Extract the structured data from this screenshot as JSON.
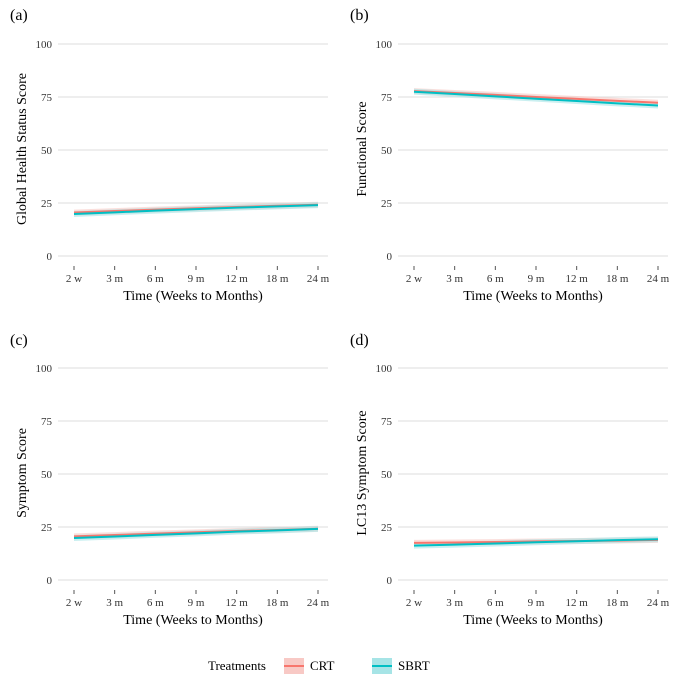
{
  "legend": {
    "title": "Treatments",
    "entries": [
      {
        "name": "CRT",
        "color": "#F8766D",
        "band": "#F8C9C5"
      },
      {
        "name": "SBRT",
        "color": "#00BFC4",
        "band": "#A6E4E6"
      }
    ]
  },
  "chart_data": [
    {
      "type": "line",
      "label": "(a)",
      "xlabel": "Time (Weeks to Months)",
      "ylabel": "Global Health Status Score",
      "categories": [
        "2 w",
        "3 m",
        "6 m",
        "9 m",
        "12 m",
        "18 m",
        "24 m"
      ],
      "ylim": [
        0,
        100
      ],
      "yticks": [
        "0",
        "25",
        "50",
        "75",
        "100"
      ],
      "grid": true,
      "series": [
        {
          "name": "CRT",
          "values": [
            20.5,
            21.2,
            21.9,
            22.5,
            23.1,
            23.7,
            24.2
          ]
        },
        {
          "name": "SBRT",
          "values": [
            19.8,
            20.6,
            21.4,
            22.1,
            22.8,
            23.4,
            24.0
          ]
        }
      ]
    },
    {
      "type": "line",
      "label": "(b)",
      "xlabel": "Time (Weeks to Months)",
      "ylabel": "Functional Score",
      "categories": [
        "2 w",
        "3 m",
        "6 m",
        "9 m",
        "12 m",
        "18 m",
        "24 m"
      ],
      "ylim": [
        0,
        100
      ],
      "yticks": [
        "0",
        "25",
        "50",
        "75",
        "100"
      ],
      "grid": true,
      "series": [
        {
          "name": "CRT",
          "values": [
            77.8,
            76.9,
            76.0,
            75.0,
            74.1,
            73.2,
            72.3
          ]
        },
        {
          "name": "SBRT",
          "values": [
            77.5,
            76.4,
            75.3,
            74.2,
            73.1,
            72.0,
            71.0
          ]
        }
      ]
    },
    {
      "type": "line",
      "label": "(c)",
      "xlabel": "Time (Weeks to Months)",
      "ylabel": "Symptom Score",
      "categories": [
        "2 w",
        "3 m",
        "6 m",
        "9 m",
        "12 m",
        "18 m",
        "24 m"
      ],
      "ylim": [
        0,
        100
      ],
      "yticks": [
        "0",
        "25",
        "50",
        "75",
        "100"
      ],
      "grid": true,
      "series": [
        {
          "name": "CRT",
          "values": [
            20.6,
            21.2,
            21.9,
            22.5,
            23.1,
            23.6,
            24.2
          ]
        },
        {
          "name": "SBRT",
          "values": [
            19.8,
            20.5,
            21.3,
            22.0,
            22.8,
            23.4,
            24.1
          ]
        }
      ]
    },
    {
      "type": "line",
      "label": "(d)",
      "xlabel": "Time (Weeks to Months)",
      "ylabel": "LC13 Symptom Score",
      "categories": [
        "2 w",
        "3 m",
        "6 m",
        "9 m",
        "12 m",
        "18 m",
        "24 m"
      ],
      "ylim": [
        0,
        100
      ],
      "yticks": [
        "0",
        "25",
        "50",
        "75",
        "100"
      ],
      "grid": true,
      "series": [
        {
          "name": "CRT",
          "values": [
            17.5,
            17.7,
            17.9,
            18.2,
            18.4,
            18.6,
            18.9
          ]
        },
        {
          "name": "SBRT",
          "values": [
            16.2,
            16.7,
            17.2,
            17.8,
            18.3,
            18.8,
            19.2
          ]
        }
      ]
    }
  ]
}
